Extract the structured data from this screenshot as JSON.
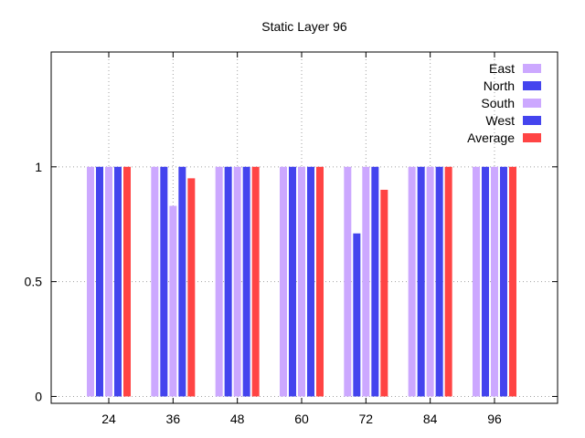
{
  "chart_data": {
    "type": "bar",
    "title": "Static Layer 96",
    "xlabel": "",
    "ylabel": "",
    "categories": [
      "24",
      "36",
      "48",
      "60",
      "72",
      "84",
      "96"
    ],
    "series": [
      {
        "name": "East",
        "color": "#cca8ff",
        "values": [
          1,
          1,
          1,
          1,
          1,
          1,
          1
        ]
      },
      {
        "name": "North",
        "color": "#4444ee",
        "values": [
          1,
          1,
          1,
          1,
          0.71,
          1,
          1
        ]
      },
      {
        "name": "South",
        "color": "#cca8ff",
        "values": [
          1,
          0.83,
          1,
          1,
          1,
          1,
          1
        ]
      },
      {
        "name": "West",
        "color": "#4444ee",
        "values": [
          1,
          1,
          1,
          1,
          1,
          1,
          1
        ]
      },
      {
        "name": "Average",
        "color": "#ff4444",
        "values": [
          1,
          0.95,
          1,
          1,
          0.9,
          1,
          1
        ]
      }
    ],
    "ylim": [
      -0.03,
      1.5
    ],
    "yticks": [
      {
        "value": 0,
        "label": "0"
      },
      {
        "value": 0.5,
        "label": "0.5"
      },
      {
        "value": 1,
        "label": "1"
      }
    ],
    "grid": true,
    "legend_position": "top-right"
  }
}
